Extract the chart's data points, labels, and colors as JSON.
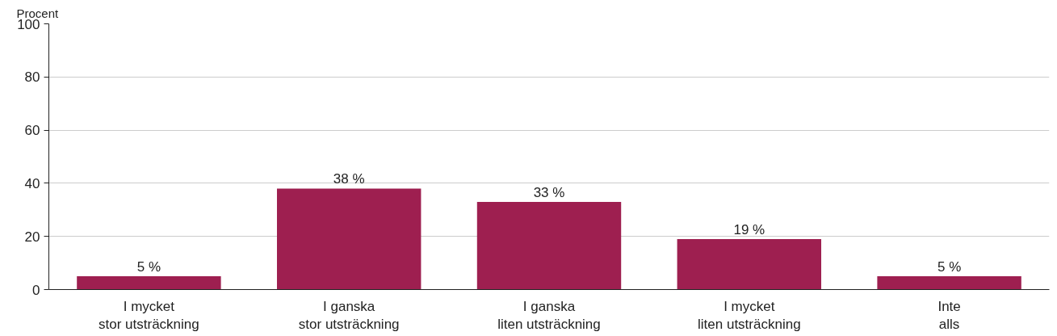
{
  "chart_data": {
    "type": "bar",
    "ylabel": "Procent",
    "categories": [
      "I mycket\nstor utsträckning",
      "I ganska\nstor utsträckning",
      "I ganska\nliten utsträckning",
      "I mycket\nliten utsträckning",
      "Inte\nalls"
    ],
    "values": [
      5,
      38,
      33,
      19,
      5
    ],
    "value_labels": [
      "5 %",
      "38 %",
      "33 %",
      "19 %",
      "5 %"
    ],
    "color": "#9e1f50",
    "ylim": [
      0,
      100
    ],
    "yticks": [
      0,
      20,
      40,
      60,
      80,
      100
    ],
    "grid": "y"
  }
}
